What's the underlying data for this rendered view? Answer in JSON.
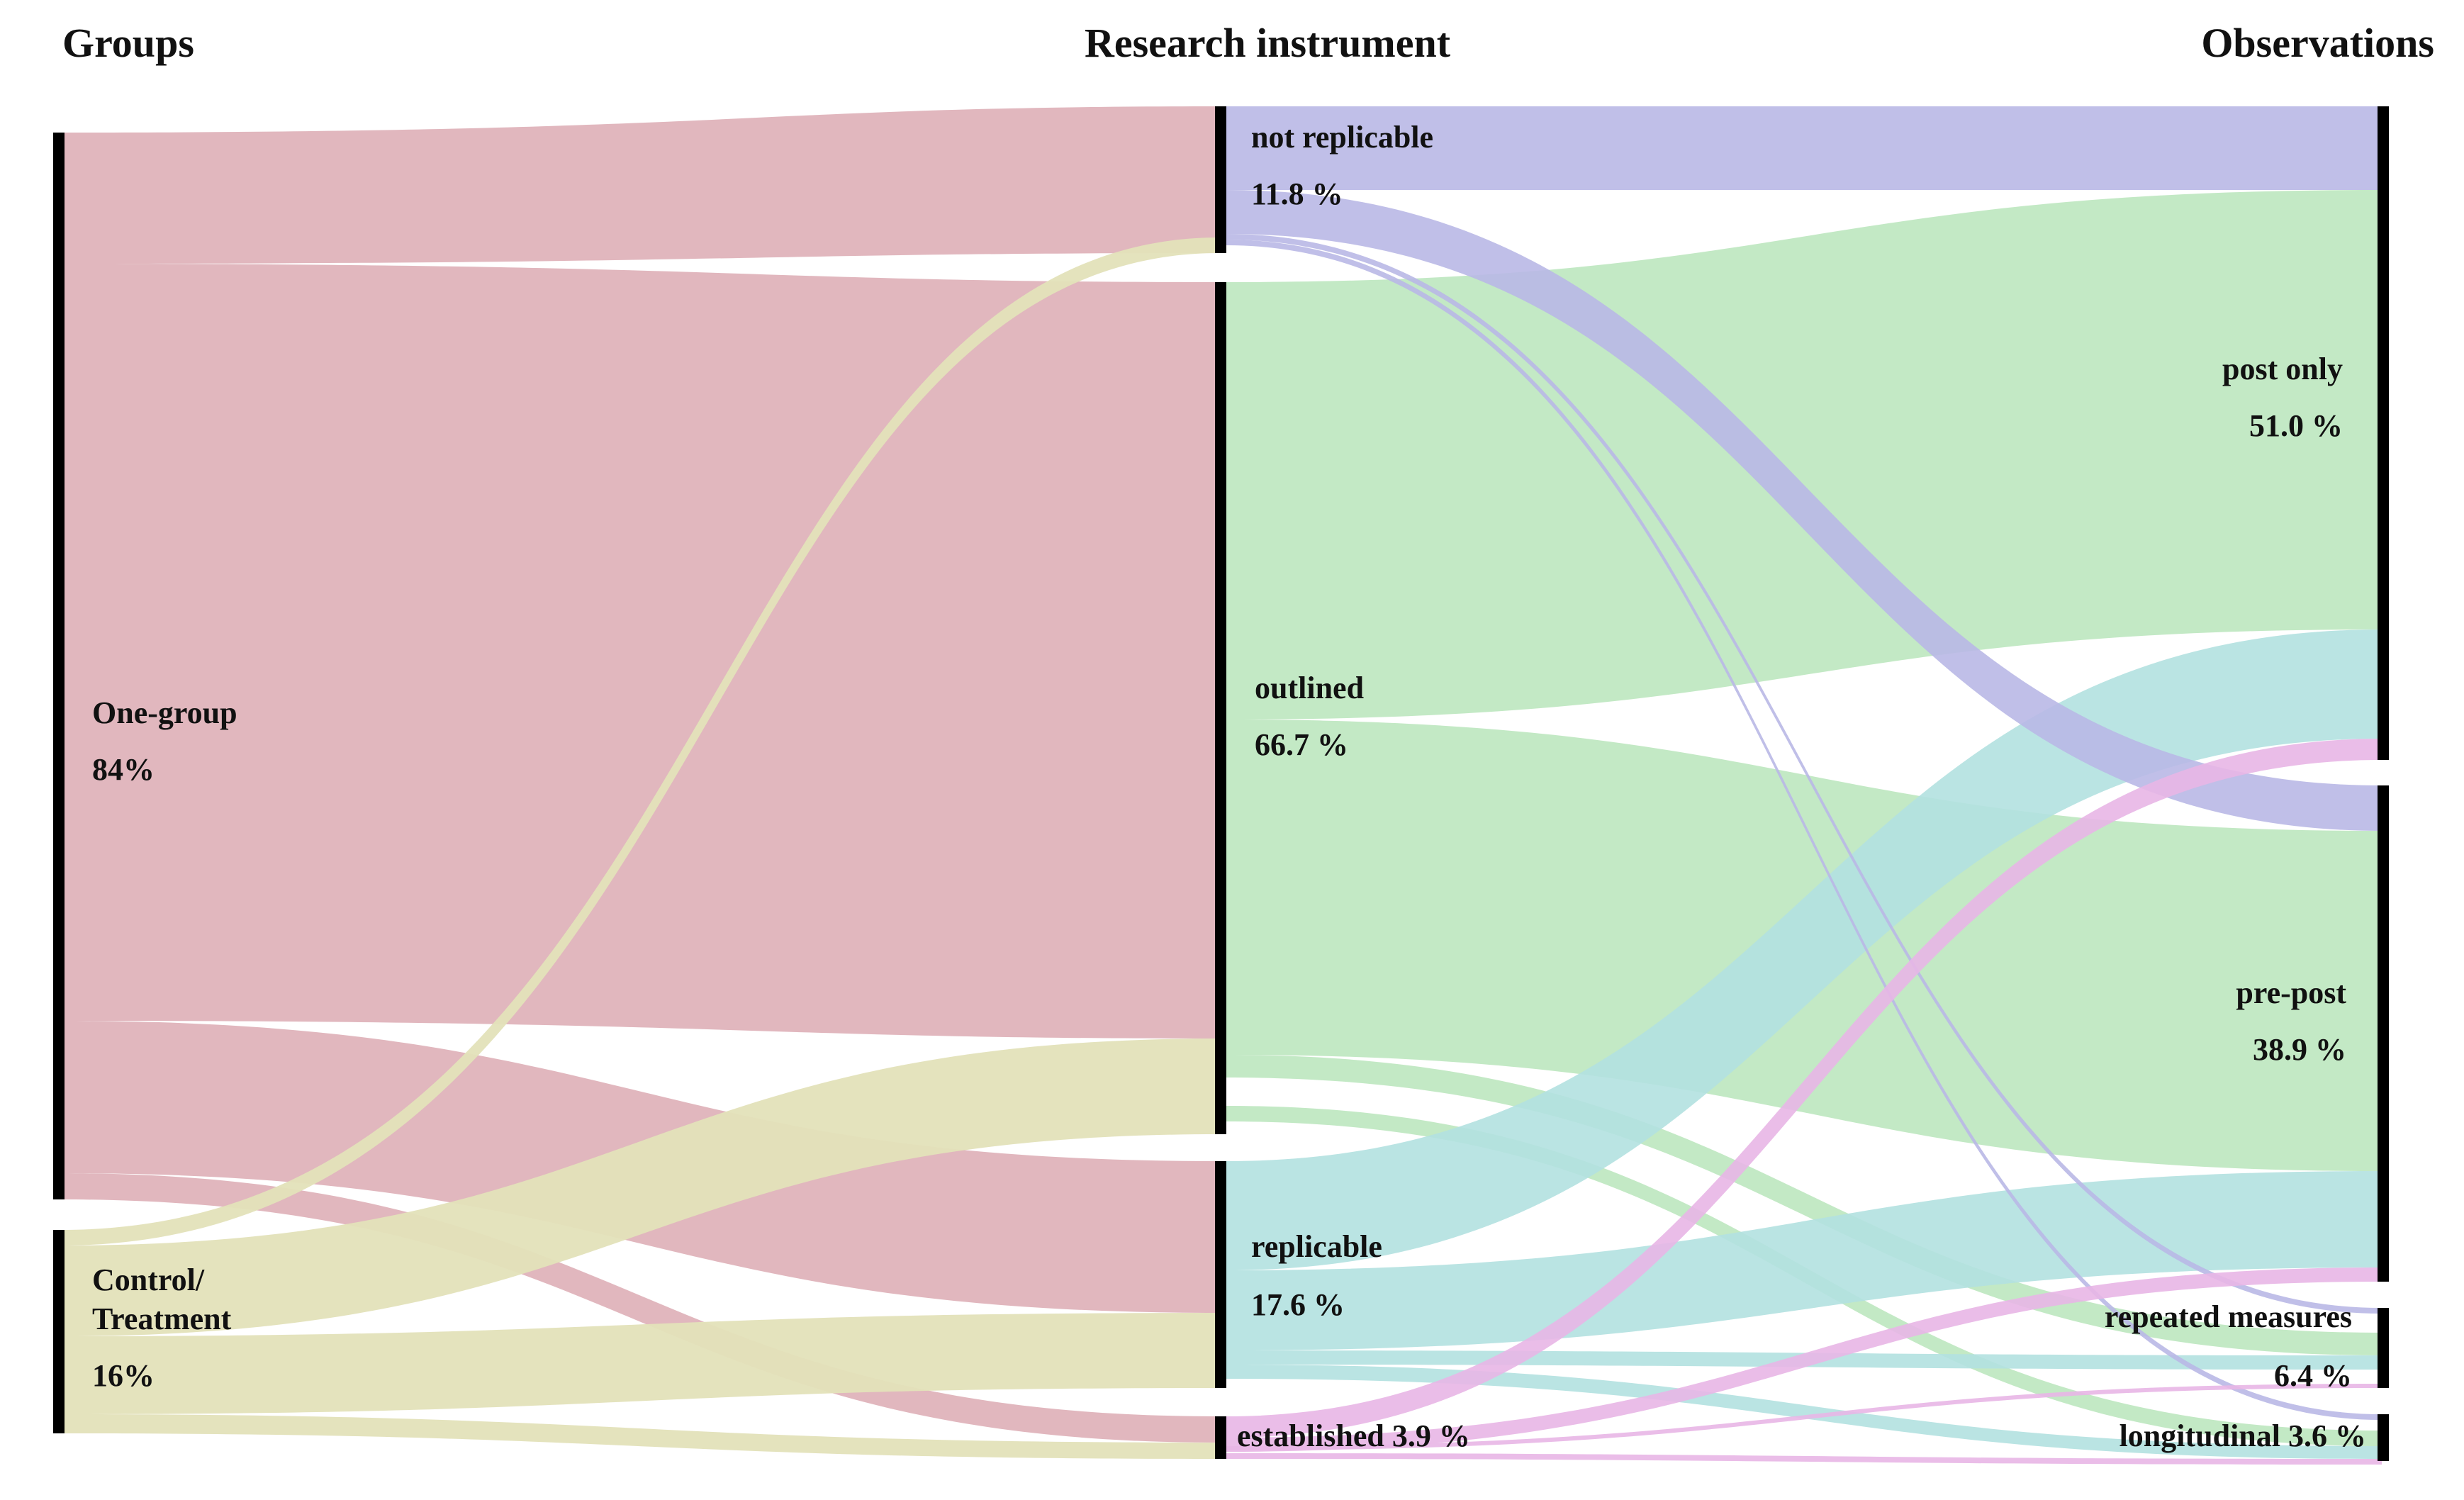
{
  "columns": {
    "groups": "Groups",
    "instrument": "Research instrument",
    "observations": "Observations"
  },
  "nodes": {
    "one_group": {
      "name": "One-group",
      "value": "84%"
    },
    "control": {
      "name_line1": "Control/",
      "name_line2": "Treatment",
      "value": "16%"
    },
    "not_replicable": {
      "name": "not replicable",
      "value": "11.8 %"
    },
    "outlined": {
      "name": "outlined",
      "value": "66.7 %"
    },
    "replicable": {
      "name": "replicable",
      "value": "17.6 %"
    },
    "established": {
      "label": "established 3.9 %"
    },
    "post_only": {
      "name": "post only",
      "value": "51.0 %"
    },
    "pre_post": {
      "name": "pre-post",
      "value": "38.9 %"
    },
    "repeated": {
      "name": "repeated measures",
      "value": "6.4 %"
    },
    "longitudinal": {
      "label": "longitudinal 3.6 %"
    }
  },
  "colors": {
    "one_group": "#dfb3ba",
    "control": "#e3e1b9",
    "not_replicable": "#b9b8e6",
    "outlined": "#bde7bf",
    "replicable": "#b3e1e0",
    "established": "#e8b6e6",
    "bar": "#000000"
  }
}
